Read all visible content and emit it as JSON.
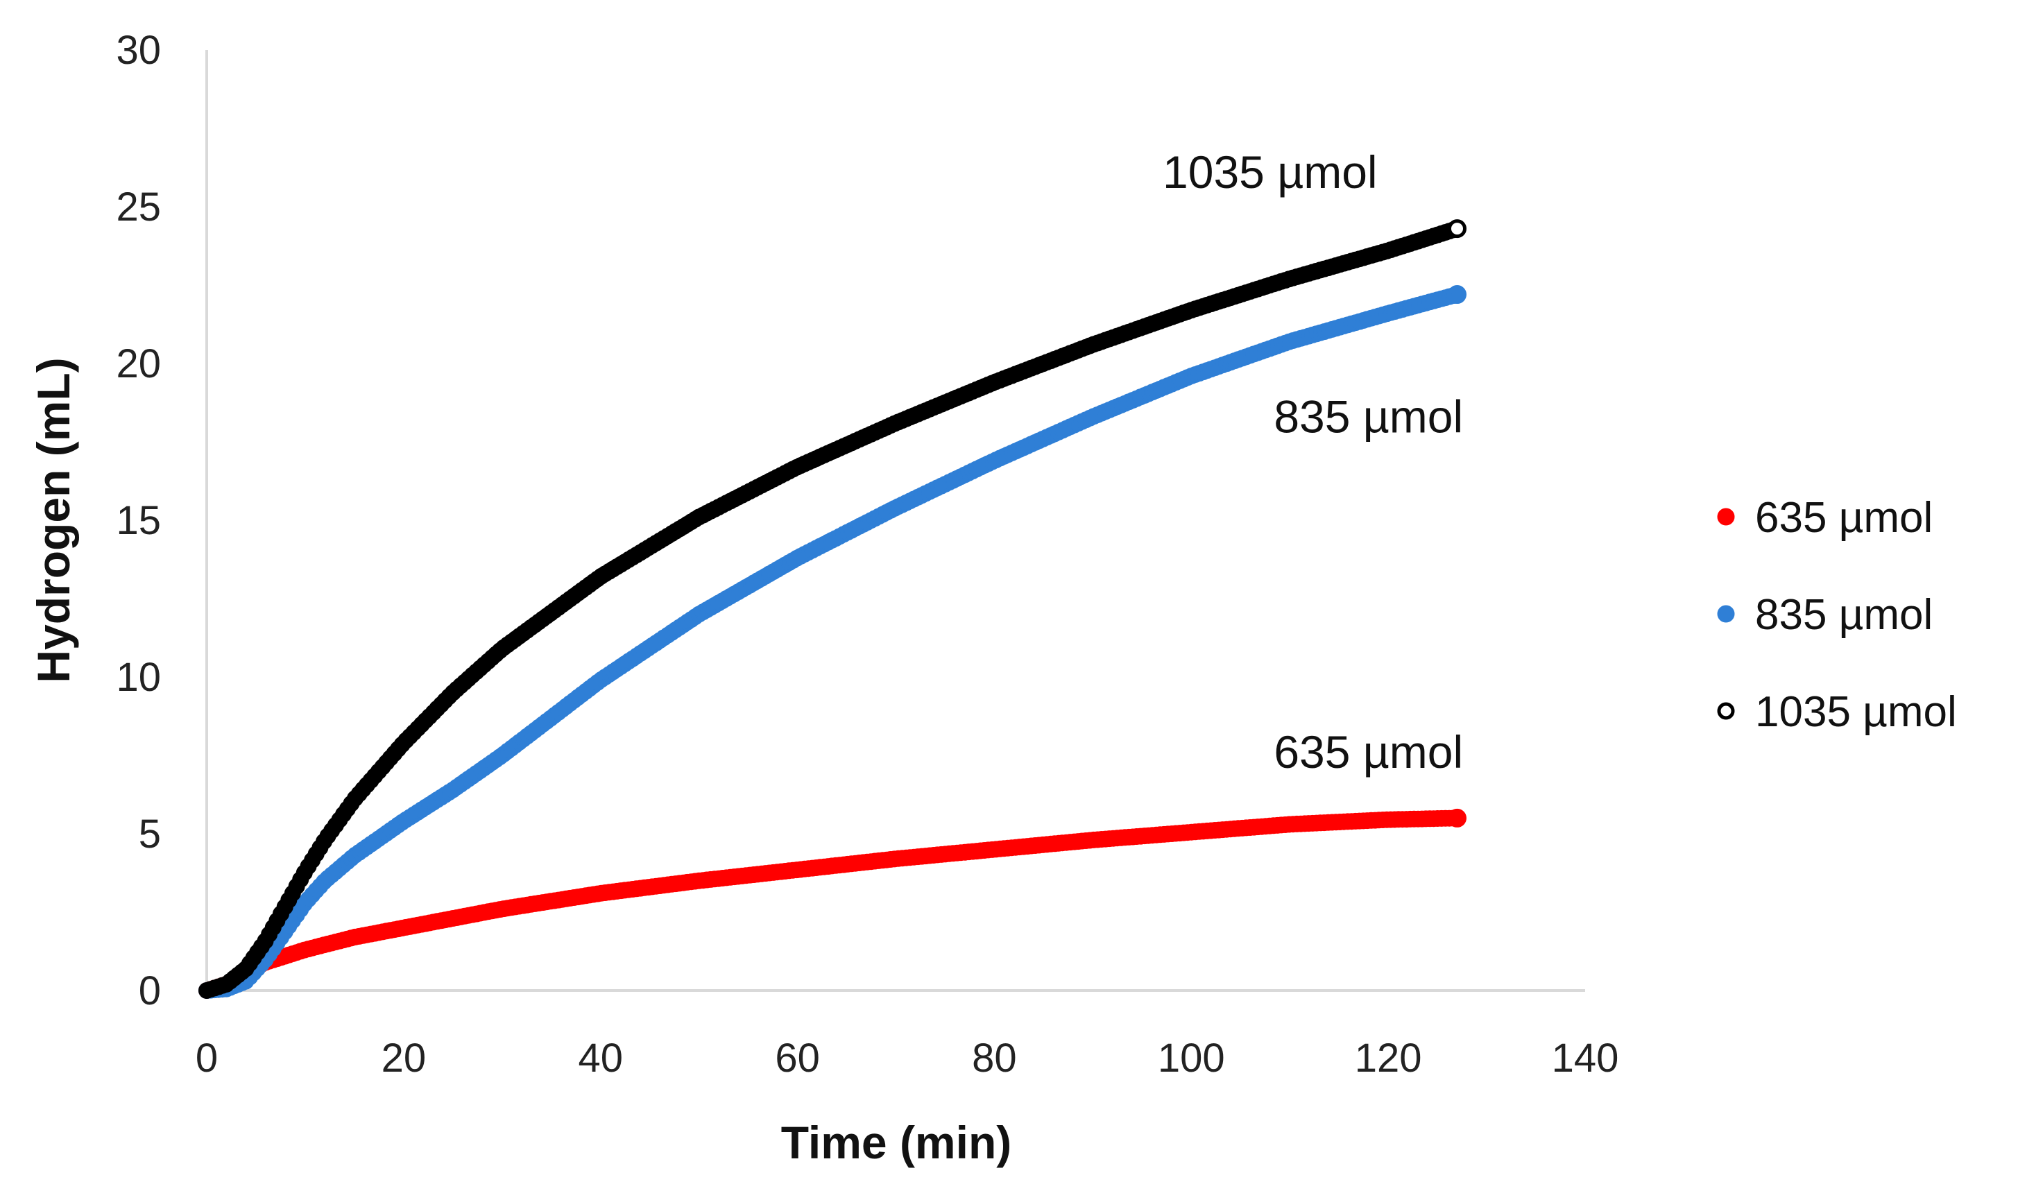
{
  "chart_data": {
    "type": "scatter",
    "title": "",
    "xlabel": "Time (min)",
    "ylabel": "Hydrogen (mL)",
    "xlim": [
      0,
      140
    ],
    "ylim": [
      0,
      30
    ],
    "xticks": [
      0,
      20,
      40,
      60,
      80,
      100,
      120,
      140
    ],
    "yticks": [
      0,
      5,
      10,
      15,
      20,
      25,
      30
    ],
    "grid": false,
    "legend_position": "right",
    "series": [
      {
        "name": "635 µmol",
        "color": "#ff0000",
        "x": [
          0,
          2,
          4,
          6,
          8,
          10,
          15,
          20,
          25,
          30,
          40,
          50,
          60,
          70,
          80,
          90,
          100,
          110,
          120,
          127
        ],
        "y": [
          0,
          0.2,
          0.6,
          0.9,
          1.1,
          1.3,
          1.7,
          2.0,
          2.3,
          2.6,
          3.1,
          3.5,
          3.85,
          4.2,
          4.5,
          4.8,
          5.05,
          5.3,
          5.45,
          5.5
        ]
      },
      {
        "name": "835 µmol",
        "color": "#2f7fd6",
        "x": [
          0,
          2,
          4,
          6,
          8,
          10,
          12,
          15,
          20,
          25,
          30,
          40,
          50,
          60,
          70,
          80,
          90,
          100,
          110,
          120,
          127
        ],
        "y": [
          0,
          0.05,
          0.3,
          1.0,
          1.9,
          2.8,
          3.5,
          4.3,
          5.4,
          6.4,
          7.5,
          9.9,
          12.0,
          13.8,
          15.4,
          16.9,
          18.3,
          19.6,
          20.7,
          21.6,
          22.2
        ]
      },
      {
        "name": "1035 µmol",
        "color": "#000000",
        "x": [
          0,
          2,
          4,
          6,
          8,
          10,
          12,
          15,
          20,
          25,
          30,
          40,
          50,
          60,
          70,
          80,
          90,
          100,
          110,
          120,
          127
        ],
        "y": [
          0,
          0.2,
          0.7,
          1.6,
          2.7,
          3.8,
          4.8,
          6.1,
          7.9,
          9.5,
          10.9,
          13.2,
          15.1,
          16.7,
          18.1,
          19.4,
          20.6,
          21.7,
          22.7,
          23.6,
          24.3
        ]
      }
    ],
    "annotations": [
      {
        "text": "1035 µmol",
        "x": 108,
        "y": 25.6
      },
      {
        "text": "835 µmol",
        "x": 118,
        "y": 17.8
      },
      {
        "text": "635 µmol",
        "x": 118,
        "y": 7.1
      }
    ]
  }
}
